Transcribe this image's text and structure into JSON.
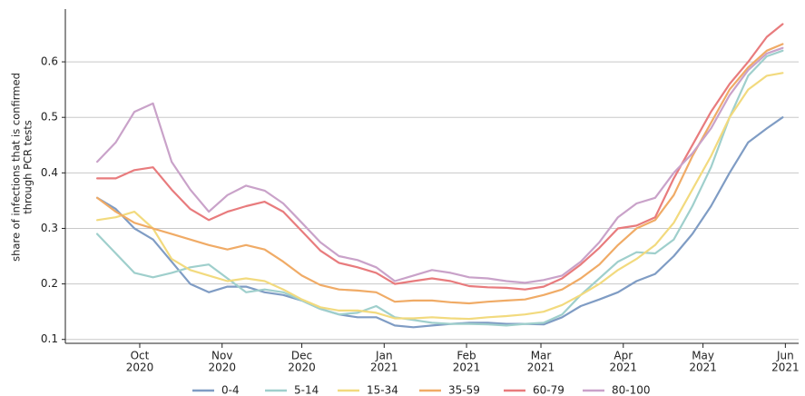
{
  "chart_data": {
    "type": "line",
    "y_label": [
      "share of infections that is confirmed",
      "through PCR tests"
    ],
    "x": [
      "2020-09-15",
      "2020-09-22",
      "2020-09-29",
      "2020-10-06",
      "2020-10-13",
      "2020-10-20",
      "2020-10-27",
      "2020-11-03",
      "2020-11-10",
      "2020-11-17",
      "2020-11-24",
      "2020-12-01",
      "2020-12-08",
      "2020-12-15",
      "2020-12-22",
      "2020-12-29",
      "2021-01-05",
      "2021-01-12",
      "2021-01-19",
      "2021-01-26",
      "2021-02-02",
      "2021-02-09",
      "2021-02-16",
      "2021-02-23",
      "2021-03-02",
      "2021-03-09",
      "2021-03-16",
      "2021-03-23",
      "2021-03-30",
      "2021-04-06",
      "2021-04-13",
      "2021-04-20",
      "2021-04-27",
      "2021-05-04",
      "2021-05-11",
      "2021-05-18",
      "2021-05-25",
      "2021-05-31"
    ],
    "series": [
      {
        "name": "0-4",
        "color": "#7f9cc4",
        "values": [
          0.355,
          0.335,
          0.3,
          0.28,
          0.24,
          0.2,
          0.185,
          0.195,
          0.195,
          0.185,
          0.18,
          0.17,
          0.155,
          0.145,
          0.14,
          0.14,
          0.125,
          0.122,
          0.125,
          0.128,
          0.13,
          0.13,
          0.128,
          0.128,
          0.127,
          0.14,
          0.16,
          0.172,
          0.185,
          0.205,
          0.218,
          0.25,
          0.29,
          0.34,
          0.4,
          0.455,
          0.48,
          0.5
        ]
      },
      {
        "name": "5-14",
        "color": "#9fcfcc",
        "values": [
          0.29,
          0.255,
          0.22,
          0.212,
          0.22,
          0.23,
          0.235,
          0.21,
          0.185,
          0.19,
          0.185,
          0.17,
          0.155,
          0.145,
          0.148,
          0.16,
          0.14,
          0.135,
          0.13,
          0.128,
          0.128,
          0.127,
          0.125,
          0.128,
          0.13,
          0.145,
          0.18,
          0.21,
          0.24,
          0.257,
          0.255,
          0.28,
          0.34,
          0.41,
          0.5,
          0.575,
          0.61,
          0.62
        ]
      },
      {
        "name": "15-34",
        "color": "#f2da7e",
        "values": [
          0.315,
          0.32,
          0.33,
          0.3,
          0.245,
          0.225,
          0.215,
          0.205,
          0.21,
          0.205,
          0.19,
          0.172,
          0.158,
          0.152,
          0.152,
          0.148,
          0.138,
          0.138,
          0.14,
          0.138,
          0.137,
          0.14,
          0.142,
          0.145,
          0.15,
          0.162,
          0.18,
          0.2,
          0.225,
          0.245,
          0.27,
          0.31,
          0.37,
          0.43,
          0.5,
          0.55,
          0.575,
          0.58
        ]
      },
      {
        "name": "35-59",
        "color": "#f0ab66",
        "values": [
          0.355,
          0.33,
          0.31,
          0.3,
          0.29,
          0.28,
          0.27,
          0.262,
          0.27,
          0.262,
          0.24,
          0.215,
          0.198,
          0.19,
          0.188,
          0.185,
          0.168,
          0.17,
          0.17,
          0.167,
          0.165,
          0.168,
          0.17,
          0.172,
          0.18,
          0.19,
          0.21,
          0.235,
          0.27,
          0.3,
          0.315,
          0.36,
          0.43,
          0.49,
          0.55,
          0.59,
          0.62,
          0.632
        ]
      },
      {
        "name": "60-79",
        "color": "#e87b7d",
        "values": [
          0.39,
          0.39,
          0.405,
          0.41,
          0.37,
          0.335,
          0.315,
          0.33,
          0.34,
          0.348,
          0.33,
          0.295,
          0.26,
          0.238,
          0.23,
          0.22,
          0.2,
          0.205,
          0.21,
          0.205,
          0.196,
          0.194,
          0.193,
          0.19,
          0.195,
          0.21,
          0.235,
          0.265,
          0.3,
          0.305,
          0.32,
          0.39,
          0.45,
          0.51,
          0.56,
          0.6,
          0.645,
          0.668
        ]
      },
      {
        "name": "80-100",
        "color": "#c9a2c9",
        "values": [
          0.42,
          0.455,
          0.51,
          0.525,
          0.42,
          0.37,
          0.33,
          0.36,
          0.377,
          0.368,
          0.345,
          0.31,
          0.275,
          0.25,
          0.243,
          0.23,
          0.205,
          0.215,
          0.225,
          0.22,
          0.212,
          0.21,
          0.205,
          0.202,
          0.207,
          0.215,
          0.24,
          0.275,
          0.32,
          0.345,
          0.355,
          0.4,
          0.435,
          0.48,
          0.54,
          0.585,
          0.615,
          0.625
        ]
      }
    ],
    "xlim": [
      "2020-09-03",
      "2021-06-06"
    ],
    "xticks": [
      {
        "value": "2020-10-01",
        "label": [
          "Oct",
          "2020"
        ]
      },
      {
        "value": "2020-11-01",
        "label": [
          "Nov",
          "2020"
        ]
      },
      {
        "value": "2020-12-01",
        "label": [
          "Dec",
          "2020"
        ]
      },
      {
        "value": "2021-01-01",
        "label": [
          "Jan",
          "2021"
        ]
      },
      {
        "value": "2021-02-01",
        "label": [
          "Feb",
          "2021"
        ]
      },
      {
        "value": "2021-03-01",
        "label": [
          "Mar",
          "2021"
        ]
      },
      {
        "value": "2021-04-01",
        "label": [
          "Apr",
          "2021"
        ]
      },
      {
        "value": "2021-05-01",
        "label": [
          "May",
          "2021"
        ]
      },
      {
        "value": "2021-06-01",
        "label": [
          "Jun",
          "2021"
        ]
      }
    ],
    "ylim": [
      0.093,
      0.695
    ],
    "yticks": [
      0.1,
      0.2,
      0.3,
      0.4,
      0.5,
      0.6
    ],
    "grid": true,
    "legend": "bottom"
  }
}
